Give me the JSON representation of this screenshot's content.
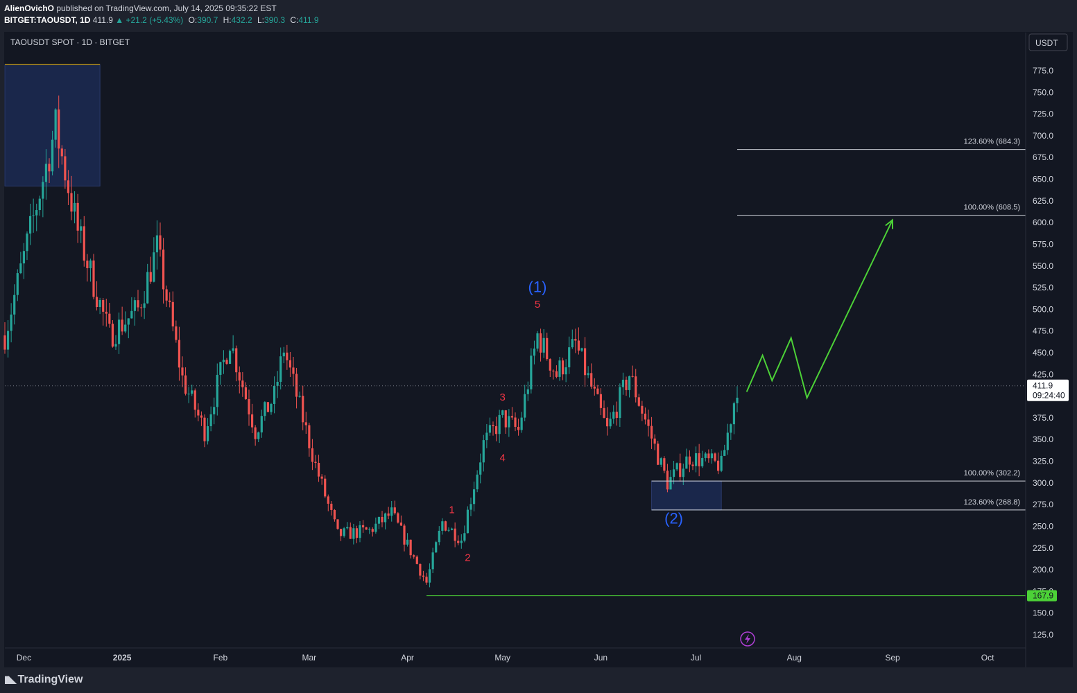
{
  "header": {
    "author": "AlienOvichO",
    "published_text": " published on TradingView.com, July 14, 2025 09:35:22 EST",
    "symbol": "BITGET:TAOUSDT, 1D",
    "last": "411.9",
    "change": "▲ +21.2 (+5.43%)",
    "open_label": "O:",
    "open": "390.7",
    "high_label": "H:",
    "high": "432.2",
    "low_label": "L:",
    "low": "390.3",
    "close_label": "C:",
    "close": "411.9"
  },
  "legend": {
    "title": "TAOUSDT SPOT · 1D · BITGET"
  },
  "currency_button": "USDT",
  "footer": {
    "brand": "TradingView"
  },
  "colors": {
    "up": "#26a69a",
    "down": "#ef5350",
    "wave_red": "#f23645",
    "wave_blue": "#2962ff",
    "projection": "#4cd137",
    "zone": "#1c2a52"
  },
  "chart_data": {
    "type": "candlestick",
    "x_axis": {
      "start": "2024-11-25",
      "end": "2025-10-13",
      "tick_labels": [
        {
          "label": "Dec",
          "date": "2024-12-01"
        },
        {
          "label": "2025",
          "date": "2025-01-01"
        },
        {
          "label": "Feb",
          "date": "2025-02-01"
        },
        {
          "label": "Mar",
          "date": "2025-03-01"
        },
        {
          "label": "Apr",
          "date": "2025-04-01"
        },
        {
          "label": "May",
          "date": "2025-05-01"
        },
        {
          "label": "Jun",
          "date": "2025-06-01"
        },
        {
          "label": "Jul",
          "date": "2025-07-01"
        },
        {
          "label": "Aug",
          "date": "2025-08-01"
        },
        {
          "label": "Sep",
          "date": "2025-09-01"
        },
        {
          "label": "Oct",
          "date": "2025-10-01"
        }
      ]
    },
    "y_axis": {
      "ticks": [
        "125.0",
        "150.0",
        "175.0",
        "200.0",
        "225.0",
        "250.0",
        "275.0",
        "300.0",
        "325.0",
        "350.0",
        "375.0",
        "400.0",
        "425.0",
        "450.0",
        "475.0",
        "500.0",
        "525.0",
        "550.0",
        "575.0",
        "600.0",
        "625.0",
        "650.0",
        "675.0",
        "700.0",
        "725.0",
        "750.0",
        "775.0"
      ]
    },
    "price_labels": {
      "current_price": "411.9",
      "countdown": "09:24:40",
      "low_label": "167.9"
    },
    "anchors": [
      {
        "date": "2024-11-25",
        "price": 470
      },
      {
        "date": "2024-12-05",
        "price": 620
      },
      {
        "date": "2024-12-11",
        "price": 710
      },
      {
        "date": "2024-12-18",
        "price": 590
      },
      {
        "date": "2024-12-28",
        "price": 470
      },
      {
        "date": "2025-01-06",
        "price": 500
      },
      {
        "date": "2025-01-12",
        "price": 570
      },
      {
        "date": "2025-01-20",
        "price": 420
      },
      {
        "date": "2025-01-27",
        "price": 360
      },
      {
        "date": "2025-02-04",
        "price": 465
      },
      {
        "date": "2025-02-12",
        "price": 360
      },
      {
        "date": "2025-02-18",
        "price": 400
      },
      {
        "date": "2025-02-21",
        "price": 455
      },
      {
        "date": "2025-03-03",
        "price": 320
      },
      {
        "date": "2025-03-10",
        "price": 240
      },
      {
        "date": "2025-03-20",
        "price": 245
      },
      {
        "date": "2025-03-27",
        "price": 265
      },
      {
        "date": "2025-04-07",
        "price": 185
      },
      {
        "date": "2025-04-12",
        "price": 255
      },
      {
        "date": "2025-04-18",
        "price": 235
      },
      {
        "date": "2025-04-25",
        "price": 345
      },
      {
        "date": "2025-05-01",
        "price": 375
      },
      {
        "date": "2025-05-06",
        "price": 360
      },
      {
        "date": "2025-05-12",
        "price": 470
      },
      {
        "date": "2025-05-18",
        "price": 425
      },
      {
        "date": "2025-05-24",
        "price": 460
      },
      {
        "date": "2025-06-03",
        "price": 360
      },
      {
        "date": "2025-06-10",
        "price": 425
      },
      {
        "date": "2025-06-22",
        "price": 300
      },
      {
        "date": "2025-06-29",
        "price": 330
      },
      {
        "date": "2025-07-09",
        "price": 320
      },
      {
        "date": "2025-07-14",
        "price": 412
      }
    ],
    "fib_levels": [
      {
        "label": "123.60% (684.3)",
        "price": 684.3,
        "from": "2025-07-14"
      },
      {
        "label": "100.00% (608.5)",
        "price": 608.5,
        "from": "2025-07-14"
      },
      {
        "label": "100.00% (302.2)",
        "price": 302.2,
        "from": "2025-06-17"
      },
      {
        "label": "123.60% (268.8)",
        "price": 268.8,
        "from": "2025-06-17"
      }
    ],
    "zones": [
      {
        "from": "2024-11-25",
        "to": "2024-12-25",
        "top": 782,
        "bottom": 642
      },
      {
        "from": "2025-06-17",
        "to": "2025-07-09",
        "top": 302.2,
        "bottom": 268.8
      }
    ],
    "support_line": {
      "from": "2025-04-07",
      "price": 170
    },
    "wave_labels": [
      {
        "text": "1",
        "date": "2025-04-15",
        "price": 265,
        "color": "red"
      },
      {
        "text": "2",
        "date": "2025-04-20",
        "price": 210,
        "color": "red"
      },
      {
        "text": "3",
        "date": "2025-05-01",
        "price": 395,
        "color": "red"
      },
      {
        "text": "4",
        "date": "2025-05-01",
        "price": 325,
        "color": "red"
      },
      {
        "text": "5",
        "date": "2025-05-12",
        "price": 502,
        "color": "red"
      },
      {
        "text": "(1)",
        "date": "2025-05-12",
        "price": 520,
        "color": "blue"
      },
      {
        "text": "(2)",
        "date": "2025-06-24",
        "price": 253,
        "color": "blue"
      }
    ],
    "projection_path": [
      {
        "date": "2025-07-17",
        "price": 405
      },
      {
        "date": "2025-07-22",
        "price": 447
      },
      {
        "date": "2025-07-25",
        "price": 418
      },
      {
        "date": "2025-07-31",
        "price": 467
      },
      {
        "date": "2025-08-05",
        "price": 398
      },
      {
        "date": "2025-09-01",
        "price": 603
      }
    ]
  }
}
